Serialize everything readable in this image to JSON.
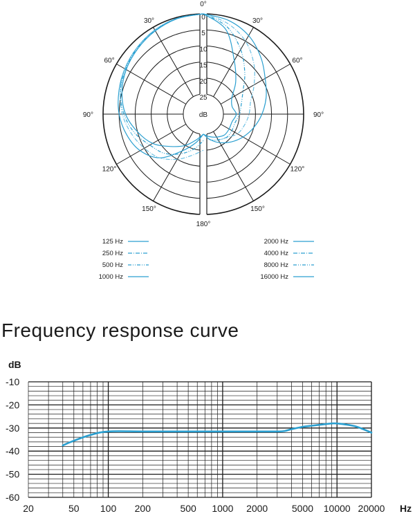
{
  "colors": {
    "ink": "#1a1a1a",
    "accent": "#2a9fd0",
    "accent_light": "#6cc0e4"
  },
  "chart_data": [
    {
      "type": "polar",
      "center_label": "dB",
      "radial_ticks": [
        "0",
        "5",
        "10",
        "15",
        "20",
        "25"
      ],
      "angle_labels_left": [
        "30°",
        "60°",
        "90°",
        "120°",
        "150°"
      ],
      "angle_labels_right": [
        "30°",
        "60°",
        "90°",
        "120°",
        "150°"
      ],
      "angle_label_top": "0°",
      "angle_label_bottom": "180°",
      "legend_left": [
        {
          "label": "125 Hz",
          "style": "solid"
        },
        {
          "label": "250 Hz",
          "style": "dashdot"
        },
        {
          "label": "500 Hz",
          "style": "dashdotdot"
        },
        {
          "label": "1000 Hz",
          "style": "solid"
        }
      ],
      "legend_right": [
        {
          "label": "2000 Hz",
          "style": "solid"
        },
        {
          "label": "4000 Hz",
          "style": "dashdot"
        },
        {
          "label": "8000 Hz",
          "style": "dashdotdot"
        },
        {
          "label": "16000 Hz",
          "style": "solid"
        }
      ],
      "series_left": [
        {
          "name": "125 Hz",
          "angles": [
            0,
            15,
            30,
            45,
            60,
            75,
            90,
            105,
            120,
            135,
            150,
            165,
            180
          ],
          "db": [
            0,
            0.3,
            1,
            2,
            3,
            4,
            5,
            6.5,
            8.5,
            12,
            18,
            22,
            25
          ]
        },
        {
          "name": "250 Hz",
          "angles": [
            0,
            15,
            30,
            45,
            60,
            75,
            90,
            105,
            120,
            135,
            150,
            165,
            180
          ],
          "db": [
            0,
            0.3,
            1,
            2,
            3,
            4.5,
            6,
            8,
            10,
            12,
            15,
            18,
            20
          ]
        },
        {
          "name": "500 Hz",
          "angles": [
            0,
            15,
            30,
            45,
            60,
            75,
            90,
            105,
            120,
            135,
            150,
            165,
            180
          ],
          "db": [
            0,
            0.3,
            1.2,
            2.2,
            3.3,
            4.5,
            6.5,
            9,
            12,
            14,
            17,
            20,
            23
          ]
        },
        {
          "name": "1000 Hz",
          "angles": [
            0,
            15,
            30,
            45,
            60,
            75,
            90,
            105,
            120,
            135,
            150,
            165,
            180
          ],
          "db": [
            0,
            0.4,
            1.3,
            2.4,
            3.5,
            5,
            7,
            10,
            13,
            17,
            20,
            23,
            25
          ]
        }
      ],
      "series_right": [
        {
          "name": "2000 Hz",
          "angles": [
            0,
            15,
            30,
            45,
            60,
            75,
            90,
            105,
            120,
            135,
            150,
            165,
            180
          ],
          "db": [
            0,
            1,
            3,
            6,
            9,
            11,
            13,
            15,
            17,
            19,
            21,
            23,
            25
          ]
        },
        {
          "name": "4000 Hz",
          "angles": [
            0,
            15,
            30,
            45,
            60,
            75,
            90,
            105,
            120,
            135,
            150,
            165,
            180
          ],
          "db": [
            0,
            2,
            5,
            9,
            13,
            16,
            17,
            18,
            19,
            21,
            22,
            23,
            25
          ]
        },
        {
          "name": "8000 Hz",
          "angles": [
            0,
            15,
            30,
            45,
            60,
            75,
            90,
            105,
            120,
            135,
            150,
            165,
            180
          ],
          "db": [
            0,
            3,
            8,
            13,
            17,
            19,
            20,
            21,
            21,
            21,
            22,
            23,
            25
          ]
        },
        {
          "name": "16000 Hz",
          "angles": [
            0,
            15,
            30,
            45,
            60,
            75,
            90,
            105,
            120,
            135,
            150,
            165,
            180
          ],
          "db": [
            0,
            4,
            12,
            17,
            21,
            22,
            21,
            22,
            22,
            22,
            23,
            24,
            25
          ]
        }
      ]
    },
    {
      "type": "line",
      "title": "Frequency response curve",
      "ylabel": "dB",
      "xlabel": "Hz",
      "xscale": "log",
      "xlim": [
        20,
        20000
      ],
      "ylim": [
        -60,
        -10
      ],
      "y_ticks": [
        "-10",
        "-20",
        "-30",
        "-40",
        "-50",
        "-60"
      ],
      "x_ticks": [
        "20",
        "50",
        "100",
        "200",
        "500",
        "1000",
        "2000",
        "5000",
        "10000",
        "20000"
      ],
      "series": [
        {
          "x": [
            40,
            50,
            70,
            100,
            200,
            500,
            1000,
            2000,
            3000,
            3500,
            4000,
            5000,
            6000,
            8000,
            9500,
            12000,
            15000,
            20000
          ],
          "y": [
            -37.5,
            -35.5,
            -33,
            -31.5,
            -31.5,
            -31.5,
            -31.5,
            -31.5,
            -31.5,
            -31.3,
            -30.5,
            -29.5,
            -29,
            -28.3,
            -28,
            -28.5,
            -29.5,
            -32
          ]
        }
      ]
    }
  ]
}
